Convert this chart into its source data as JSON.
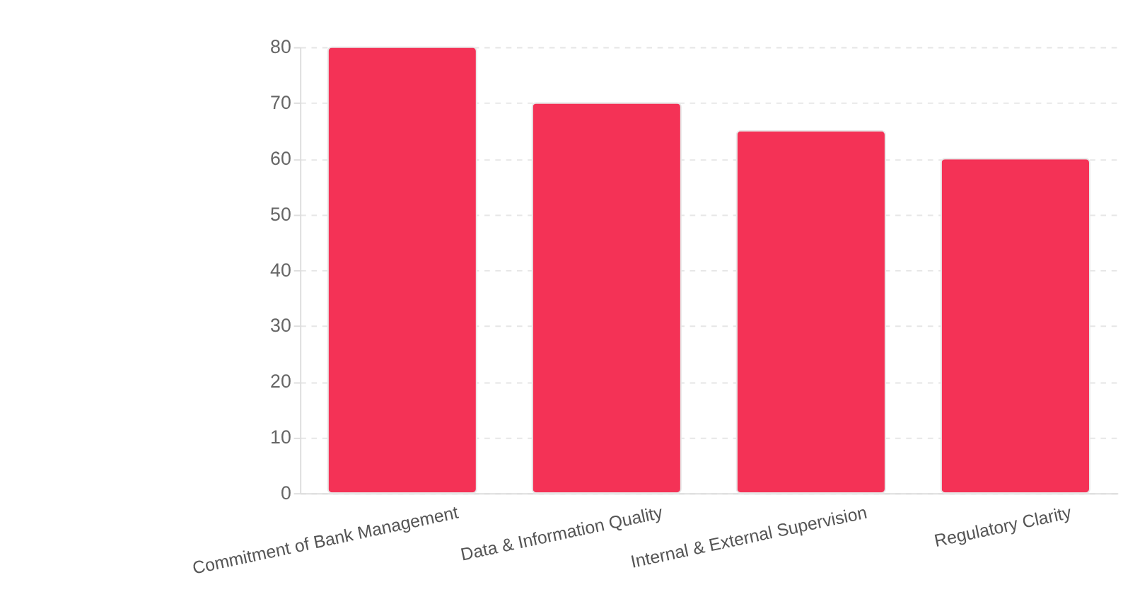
{
  "chart_data": {
    "type": "bar",
    "categories": [
      "Commitment of Bank Management",
      "Data & Information Quality",
      "Internal & External Supervision",
      "Regulatory Clarity"
    ],
    "values": [
      80,
      70,
      65,
      60
    ],
    "color": "#f43256",
    "ylim": [
      0,
      80
    ],
    "yticks": [
      0,
      10,
      20,
      30,
      40,
      50,
      60,
      70,
      80
    ],
    "grid": "y"
  }
}
